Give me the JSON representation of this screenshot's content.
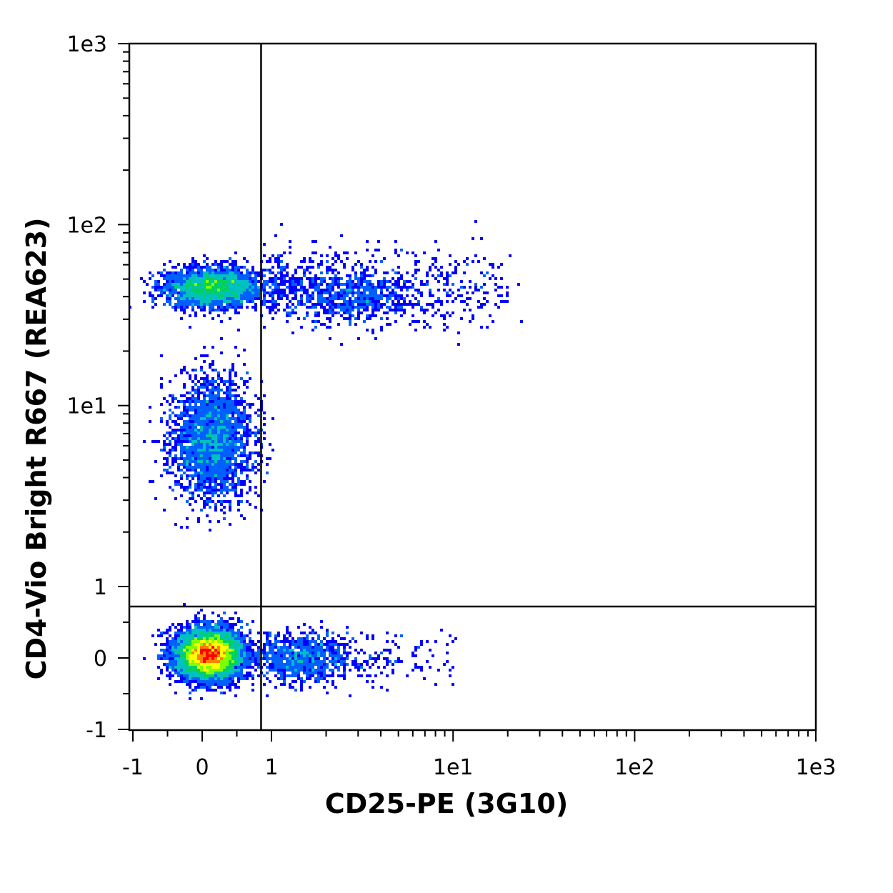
{
  "chart_data": {
    "type": "scatter",
    "subtype": "flow-cytometry density dot plot",
    "xlabel": "CD25-PE (3G10)",
    "ylabel": "CD4-Vio Bright R667 (REA623)",
    "x_scale": "biexponential",
    "y_scale": "biexponential",
    "xlim": [
      -1,
      1000
    ],
    "ylim": [
      -1,
      1000
    ],
    "x_ticks": [
      "-1",
      "0",
      "1",
      "1e1",
      "1e2",
      "1e3"
    ],
    "y_ticks": [
      "-1",
      "0",
      "1",
      "1e1",
      "1e2",
      "1e3"
    ],
    "gate": {
      "x": 0.85,
      "y": 0.72
    },
    "density_colors": [
      "#0000ff",
      "#0060ff",
      "#00c0c0",
      "#00d060",
      "#80ff00",
      "#ffff00",
      "#ff8000",
      "#ff0000"
    ],
    "populations": [
      {
        "center_x": 0.1,
        "center_y": 0.05,
        "spread_x": 0.2,
        "spread_y": 0.15,
        "relative_density": 1.0
      },
      {
        "center_x": 0.15,
        "center_y": 6.5,
        "spread_x": 0.25,
        "spread_y": 0.38,
        "relative_density": 0.3
      },
      {
        "center_x": 0.15,
        "center_y": 45,
        "spread_x": 0.3,
        "spread_y": 0.12,
        "relative_density": 0.35
      },
      {
        "center_x": 3.0,
        "center_y": 40,
        "spread_x": 0.35,
        "spread_y": 0.15,
        "relative_density": 0.06
      },
      {
        "center_x": 1.5,
        "center_y": 0.0,
        "spread_x": 0.3,
        "spread_y": 0.15,
        "relative_density": 0.1
      }
    ],
    "grid": false,
    "legend": "none"
  }
}
